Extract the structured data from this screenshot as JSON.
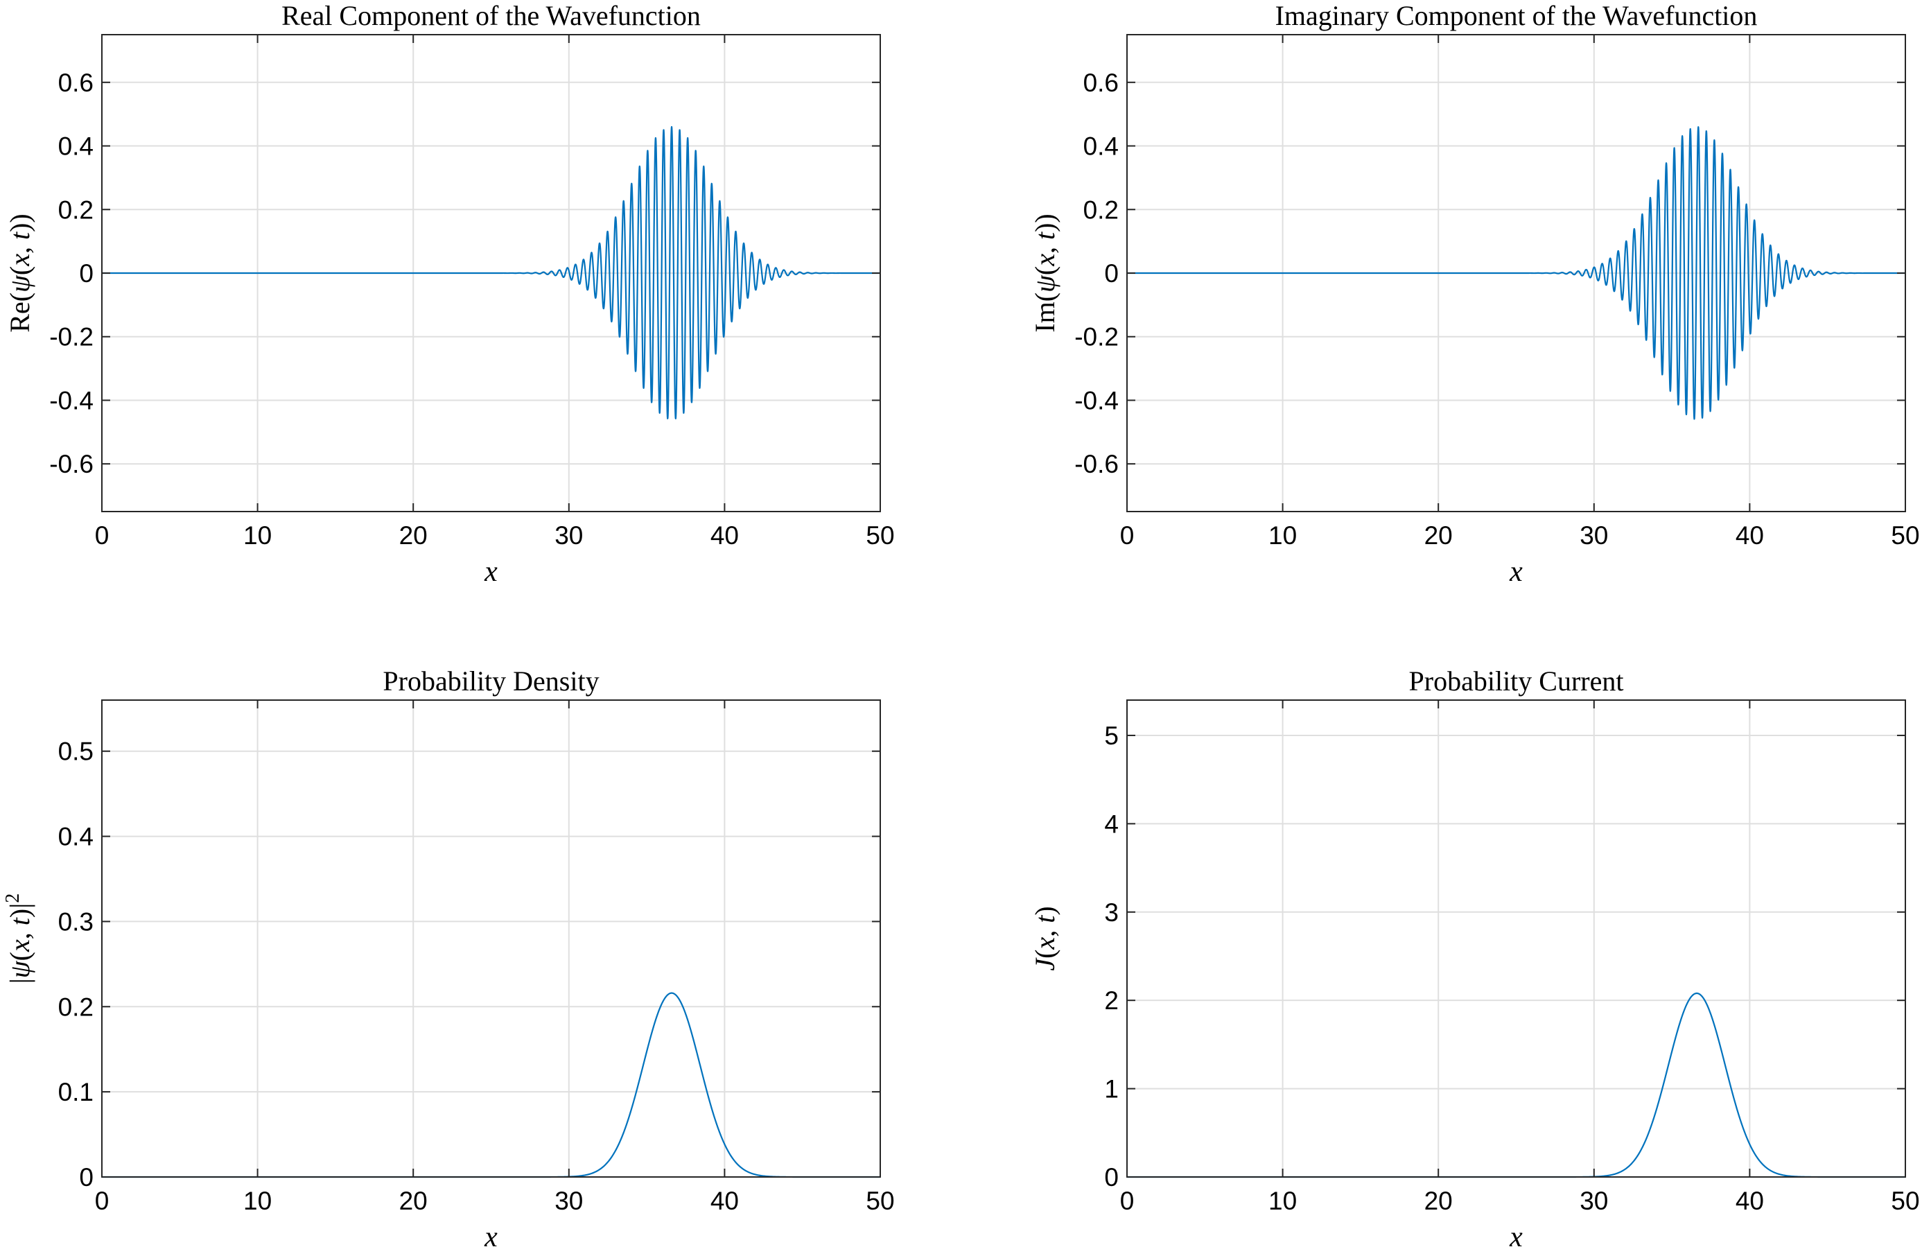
{
  "colors": {
    "line": "#0072bd",
    "grid": "#dfdfdf",
    "axes": "#262626"
  },
  "chart_data": [
    {
      "type": "line",
      "title": "Real Component of the Wavefunction",
      "xlabel": "x",
      "ylabel": "Re(ψ(x, t))",
      "ylabel_parts": [
        {
          "t": "Re(",
          "i": false
        },
        {
          "t": "ψ",
          "i": true
        },
        {
          "t": "(",
          "i": false
        },
        {
          "t": "x",
          "i": true
        },
        {
          "t": ", ",
          "i": false
        },
        {
          "t": "t",
          "i": true
        },
        {
          "t": "))",
          "i": false
        }
      ],
      "xlim": [
        0,
        50
      ],
      "ylim": [
        -0.75,
        0.75
      ],
      "xticks": [
        0,
        10,
        20,
        30,
        40,
        50
      ],
      "xtick_labels": [
        "0",
        "10",
        "20",
        "30",
        "40",
        "50"
      ],
      "yticks": [
        -0.6,
        -0.4,
        -0.2,
        0,
        0.2,
        0.4,
        0.6
      ],
      "ytick_labels": [
        "-0.6",
        "-0.4",
        "-0.2",
        "0",
        "0.2",
        "0.4",
        "0.6"
      ],
      "grid": true,
      "series": [
        {
          "kind": "wave_real",
          "center": 36.6,
          "sigma": 2.6,
          "amplitude": 0.46,
          "wavelength": 0.515,
          "x_range": [
            0,
            50
          ]
        }
      ]
    },
    {
      "type": "line",
      "title": "Imaginary Component of the Wavefunction",
      "xlabel": "x",
      "ylabel": "Im(ψ(x, t))",
      "ylabel_parts": [
        {
          "t": "Im(",
          "i": false
        },
        {
          "t": "ψ",
          "i": true
        },
        {
          "t": "(",
          "i": false
        },
        {
          "t": "x",
          "i": true
        },
        {
          "t": ", ",
          "i": false
        },
        {
          "t": "t",
          "i": true
        },
        {
          "t": "))",
          "i": false
        }
      ],
      "xlim": [
        0,
        50
      ],
      "ylim": [
        -0.75,
        0.75
      ],
      "xticks": [
        0,
        10,
        20,
        30,
        40,
        50
      ],
      "xtick_labels": [
        "0",
        "10",
        "20",
        "30",
        "40",
        "50"
      ],
      "yticks": [
        -0.6,
        -0.4,
        -0.2,
        0,
        0.2,
        0.4,
        0.6
      ],
      "ytick_labels": [
        "-0.6",
        "-0.4",
        "-0.2",
        "0",
        "0.2",
        "0.4",
        "0.6"
      ],
      "grid": true,
      "series": [
        {
          "kind": "wave_imag",
          "center": 36.6,
          "sigma": 2.6,
          "amplitude": 0.46,
          "wavelength": 0.515,
          "x_range": [
            0,
            50
          ]
        }
      ]
    },
    {
      "type": "line",
      "title": "Probability Density",
      "xlabel": "x",
      "ylabel": "|ψ(x, t)|2",
      "ylabel_parts": [
        {
          "t": "|",
          "i": false
        },
        {
          "t": "ψ",
          "i": true
        },
        {
          "t": "(",
          "i": false
        },
        {
          "t": "x",
          "i": true
        },
        {
          "t": ", ",
          "i": false
        },
        {
          "t": "t",
          "i": true
        },
        {
          "t": ")|",
          "i": false
        },
        {
          "t": "2",
          "i": false,
          "sup": true
        }
      ],
      "xlim": [
        0,
        50
      ],
      "ylim": [
        0,
        0.56
      ],
      "xticks": [
        0,
        10,
        20,
        30,
        40,
        50
      ],
      "xtick_labels": [
        "0",
        "10",
        "20",
        "30",
        "40",
        "50"
      ],
      "yticks": [
        0,
        0.1,
        0.2,
        0.3,
        0.4,
        0.5
      ],
      "ytick_labels": [
        "0",
        "0.1",
        "0.2",
        "0.3",
        "0.4",
        "0.5"
      ],
      "grid": true,
      "series": [
        {
          "kind": "gaussian",
          "center": 36.6,
          "sigma": 1.83,
          "peak": 0.216,
          "x_range": [
            0,
            50
          ]
        }
      ]
    },
    {
      "type": "line",
      "title": "Probability Current",
      "xlabel": "x",
      "ylabel": "J(x, t)",
      "ylabel_parts": [
        {
          "t": "J",
          "i": true
        },
        {
          "t": "(",
          "i": false
        },
        {
          "t": "x",
          "i": true
        },
        {
          "t": ", ",
          "i": false
        },
        {
          "t": "t",
          "i": true
        },
        {
          "t": ")",
          "i": false
        }
      ],
      "xlim": [
        0,
        50
      ],
      "ylim": [
        0,
        5.4
      ],
      "xticks": [
        0,
        10,
        20,
        30,
        40,
        50
      ],
      "xtick_labels": [
        "0",
        "10",
        "20",
        "30",
        "40",
        "50"
      ],
      "yticks": [
        0,
        1,
        2,
        3,
        4,
        5
      ],
      "ytick_labels": [
        "0",
        "1",
        "2",
        "3",
        "4",
        "5"
      ],
      "grid": true,
      "series": [
        {
          "kind": "gaussian",
          "center": 36.6,
          "sigma": 1.83,
          "peak": 2.08,
          "x_range": [
            0,
            50
          ]
        }
      ]
    }
  ]
}
